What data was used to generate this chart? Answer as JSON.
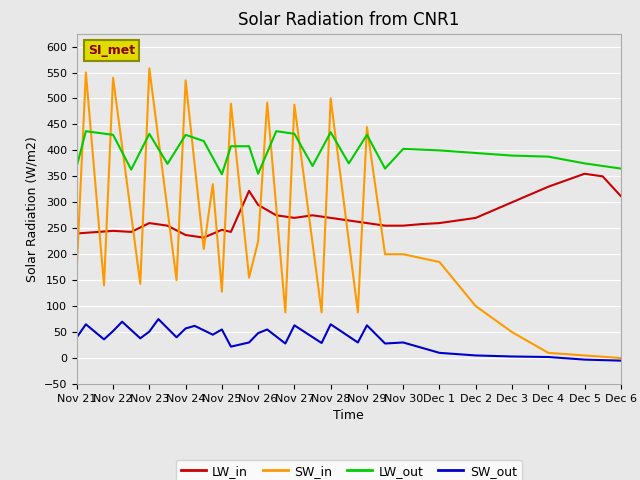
{
  "title": "Solar Radiation from CNR1",
  "xlabel": "Time",
  "ylabel": "Solar Radiation (W/m2)",
  "ylim": [
    -50,
    625
  ],
  "yticks": [
    -50,
    0,
    50,
    100,
    150,
    200,
    250,
    300,
    350,
    400,
    450,
    500,
    550,
    600
  ],
  "legend_label": "SI_met",
  "series": {
    "LW_in": {
      "color": "#cc0000",
      "data": [
        [
          0.0,
          240
        ],
        [
          1.0,
          245
        ],
        [
          1.5,
          243
        ],
        [
          2.0,
          260
        ],
        [
          2.5,
          255
        ],
        [
          3.0,
          237
        ],
        [
          3.5,
          232
        ],
        [
          4.0,
          247
        ],
        [
          4.25,
          243
        ],
        [
          4.75,
          322
        ],
        [
          5.0,
          295
        ],
        [
          5.5,
          275
        ],
        [
          6.0,
          270
        ],
        [
          6.5,
          275
        ],
        [
          7.0,
          270
        ],
        [
          7.5,
          265
        ],
        [
          8.0,
          260
        ],
        [
          8.5,
          255
        ],
        [
          9.0,
          255
        ],
        [
          9.5,
          258
        ],
        [
          10.0,
          260
        ],
        [
          11.0,
          270
        ],
        [
          12.0,
          300
        ],
        [
          13.0,
          330
        ],
        [
          14.0,
          355
        ],
        [
          14.5,
          350
        ],
        [
          15.0,
          312
        ]
      ]
    },
    "SW_in": {
      "color": "#ff9900",
      "data": [
        [
          0.0,
          175
        ],
        [
          0.25,
          550
        ],
        [
          0.75,
          140
        ],
        [
          1.0,
          540
        ],
        [
          1.75,
          143
        ],
        [
          2.0,
          558
        ],
        [
          2.75,
          150
        ],
        [
          3.0,
          535
        ],
        [
          3.5,
          210
        ],
        [
          3.75,
          335
        ],
        [
          4.0,
          128
        ],
        [
          4.25,
          490
        ],
        [
          4.75,
          155
        ],
        [
          5.0,
          225
        ],
        [
          5.25,
          492
        ],
        [
          5.75,
          88
        ],
        [
          6.0,
          488
        ],
        [
          6.75,
          88
        ],
        [
          7.0,
          500
        ],
        [
          7.75,
          88
        ],
        [
          8.0,
          445
        ],
        [
          8.5,
          200
        ],
        [
          9.0,
          200
        ],
        [
          10.0,
          185
        ],
        [
          11.0,
          100
        ],
        [
          12.0,
          50
        ],
        [
          13.0,
          10
        ],
        [
          14.0,
          5
        ],
        [
          15.0,
          0
        ]
      ]
    },
    "LW_out": {
      "color": "#00cc00",
      "data": [
        [
          0.0,
          370
        ],
        [
          0.25,
          437
        ],
        [
          1.0,
          430
        ],
        [
          1.5,
          363
        ],
        [
          2.0,
          432
        ],
        [
          2.5,
          374
        ],
        [
          3.0,
          430
        ],
        [
          3.5,
          418
        ],
        [
          4.0,
          354
        ],
        [
          4.25,
          408
        ],
        [
          4.75,
          408
        ],
        [
          5.0,
          355
        ],
        [
          5.5,
          437
        ],
        [
          6.0,
          432
        ],
        [
          6.5,
          370
        ],
        [
          7.0,
          435
        ],
        [
          7.5,
          375
        ],
        [
          8.0,
          430
        ],
        [
          8.5,
          365
        ],
        [
          9.0,
          403
        ],
        [
          10.0,
          400
        ],
        [
          11.0,
          395
        ],
        [
          12.0,
          390
        ],
        [
          13.0,
          388
        ],
        [
          14.0,
          375
        ],
        [
          14.5,
          370
        ],
        [
          15.0,
          365
        ]
      ]
    },
    "SW_out": {
      "color": "#0000cc",
      "data": [
        [
          0.0,
          40
        ],
        [
          0.25,
          65
        ],
        [
          0.75,
          36
        ],
        [
          1.0,
          52
        ],
        [
          1.25,
          70
        ],
        [
          1.75,
          38
        ],
        [
          2.0,
          51
        ],
        [
          2.25,
          75
        ],
        [
          2.75,
          40
        ],
        [
          3.0,
          57
        ],
        [
          3.25,
          62
        ],
        [
          3.75,
          45
        ],
        [
          4.0,
          55
        ],
        [
          4.25,
          22
        ],
        [
          4.75,
          30
        ],
        [
          5.0,
          48
        ],
        [
          5.25,
          55
        ],
        [
          5.75,
          28
        ],
        [
          6.0,
          63
        ],
        [
          6.75,
          29
        ],
        [
          7.0,
          65
        ],
        [
          7.75,
          30
        ],
        [
          8.0,
          63
        ],
        [
          8.5,
          28
        ],
        [
          9.0,
          30
        ],
        [
          10.0,
          10
        ],
        [
          11.0,
          5
        ],
        [
          12.0,
          3
        ],
        [
          13.0,
          2
        ],
        [
          14.0,
          -3
        ],
        [
          15.0,
          -5
        ]
      ]
    }
  },
  "background_color": "#e8e8e8",
  "plot_bg_color": "#e8e8e8",
  "legend_box_facecolor": "#dddd00",
  "legend_box_edgecolor": "#8b8b00",
  "legend_text_color": "#8b0000",
  "title_fontsize": 12,
  "axis_label_fontsize": 9,
  "tick_fontsize": 8,
  "xtick_labels": [
    "Nov 21",
    "Nov 22",
    "Nov 23",
    "Nov 24",
    "Nov 25",
    "Nov 26",
    "Nov 27",
    "Nov 28",
    "Nov 29",
    "Nov 30",
    "Dec 1",
    "Dec 2",
    "Dec 3",
    "Dec 4",
    "Dec 5",
    "Dec 6"
  ],
  "xtick_positions": [
    0,
    1,
    2,
    3,
    4,
    5,
    6,
    7,
    8,
    9,
    10,
    11,
    12,
    13,
    14,
    15
  ]
}
